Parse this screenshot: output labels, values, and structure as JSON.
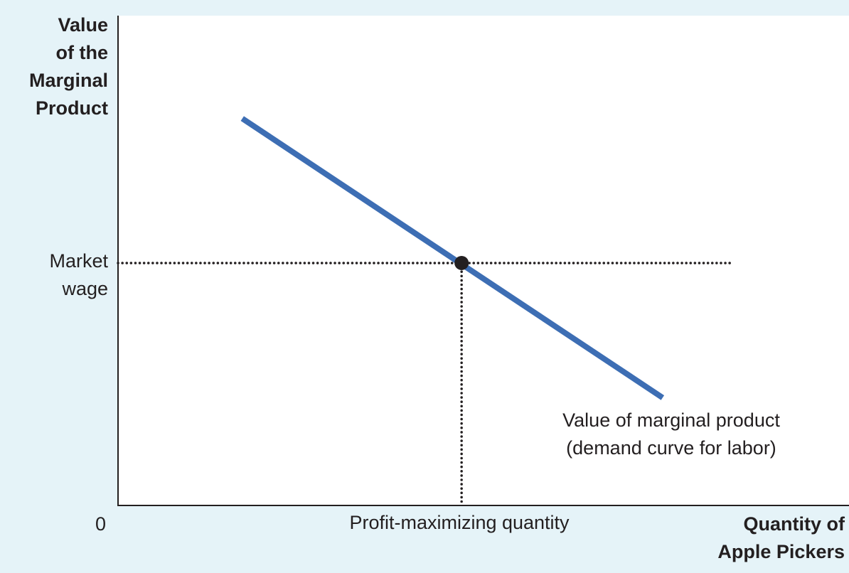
{
  "chart_data": {
    "type": "line",
    "ylabel": "Value\nof the\nMarginal\nProduct",
    "xlabel": "Quantity of\nApple Pickers",
    "origin_label": "0",
    "xlim": [
      0,
      10
    ],
    "ylim": [
      0,
      10
    ],
    "series": [
      {
        "name": "Value of marginal product\n(demand curve for labor)",
        "color": "#3d6eb4",
        "points": [
          [
            1.7,
            7.9
          ],
          [
            7.45,
            2.2
          ]
        ]
      }
    ],
    "equilibrium": {
      "x": 4.7,
      "y": 4.95
    },
    "guides": {
      "horizontal_to_x": 8.4,
      "y_tick_label": "Market\nwage",
      "x_tick_label": "Profit-maximizing quantity"
    },
    "grid": false
  }
}
